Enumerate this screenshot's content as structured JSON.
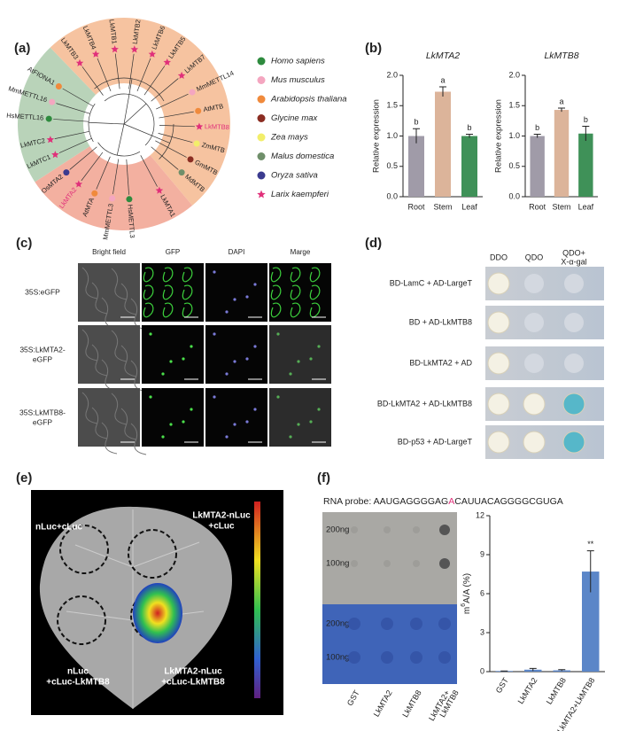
{
  "panel_labels": [
    "(a)",
    "(b)",
    "(c)",
    "(d)",
    "(e)",
    "(f)"
  ],
  "tree": {
    "leaves": [
      {
        "label": "AtFIONA1",
        "marker_color": "#f08a3c"
      },
      {
        "label": "MmMETTL16",
        "marker_color": "#f4a6c0"
      },
      {
        "label": "HsMETTL16",
        "marker_color": "#2e8b3e"
      },
      {
        "label": "LkMTC2",
        "marker_color": "#e0307a",
        "marker": "star"
      },
      {
        "label": "LkMTC1",
        "marker_color": "#e0307a",
        "marker": "star"
      },
      {
        "label": "OsMTA2",
        "marker_color": "#3b3b8f"
      },
      {
        "label": "LkMTA2",
        "marker_color": "#e0307a",
        "marker": "star",
        "label_color": "#e0307a"
      },
      {
        "label": "AtMTA",
        "marker_color": "#f08a3c"
      },
      {
        "label": "MmMETTL3",
        "marker_color": "#f4a6c0"
      },
      {
        "label": "HsMETTL3",
        "marker_color": "#2e8b3e"
      },
      {
        "label": "LkMTA1",
        "marker_color": "#e0307a",
        "marker": "star"
      },
      {
        "label": "MdMTB",
        "marker_color": "#6f8f6a"
      },
      {
        "label": "GmMTB",
        "marker_color": "#8b2d22"
      },
      {
        "label": "ZmMTB",
        "marker_color": "#f2ee6a"
      },
      {
        "label": "LkMTB8",
        "marker_color": "#e0307a",
        "marker": "star",
        "label_color": "#e0307a"
      },
      {
        "label": "AtMTB",
        "marker_color": "#f08a3c"
      },
      {
        "label": "MmMETTL14",
        "marker_color": "#f4a6c0"
      },
      {
        "label": "LkMTB7",
        "marker_color": "#e0307a",
        "marker": "star"
      },
      {
        "label": "LkMTB5",
        "marker_color": "#e0307a",
        "marker": "star"
      },
      {
        "label": "LkMTB6",
        "marker_color": "#e0307a",
        "marker": "star"
      },
      {
        "label": "LkMTB2",
        "marker_color": "#e0307a",
        "marker": "star"
      },
      {
        "label": "LkMTB1",
        "marker_color": "#e0307a",
        "marker": "star"
      },
      {
        "label": "LkMTB4",
        "marker_color": "#e0307a",
        "marker": "star"
      },
      {
        "label": "LkMTB3",
        "marker_color": "#e0307a",
        "marker": "star"
      }
    ]
  },
  "legend": [
    {
      "name": "Homo sapiens",
      "color": "#2e8b3e"
    },
    {
      "name": "Mus musculus",
      "color": "#f4a6c0"
    },
    {
      "name": "Arabidopsis thaliana",
      "color": "#f08a3c"
    },
    {
      "name": "Glycine max",
      "color": "#8b2d22"
    },
    {
      "name": "Zea mays",
      "color": "#f2ee6a"
    },
    {
      "name": "Malus domestica",
      "color": "#6f8f6a"
    },
    {
      "name": "Oryza sativa",
      "color": "#3b3b8f"
    },
    {
      "name": "Larix kaempferi",
      "color": "#e0307a",
      "shape": "star"
    }
  ],
  "chart_data": [
    {
      "type": "bar",
      "title": "LkMTA2",
      "y_label": "Relative expression",
      "categories": [
        "Root",
        "Stem",
        "Leaf"
      ],
      "values": [
        1.0,
        1.73,
        1.0
      ],
      "errors": [
        0.12,
        0.08,
        0.03
      ],
      "annotations": [
        "b",
        "a",
        "b"
      ],
      "colors": [
        "#a09ba8",
        "#dcb49a",
        "#3f9158"
      ],
      "ylim": [
        0,
        2
      ],
      "yticks": [
        {
          "value": 0,
          "label": "0.0"
        },
        0.5,
        {
          "value": 1,
          "label": "1.0"
        },
        1.5,
        {
          "value": 2,
          "label": "2.0"
        }
      ]
    },
    {
      "type": "bar",
      "title": "LkMTB8",
      "y_label": "Relative expression",
      "categories": [
        "Root",
        "Stem",
        "Leaf"
      ],
      "values": [
        1.0,
        1.43,
        1.04
      ],
      "errors": [
        0.03,
        0.03,
        0.12
      ],
      "annotations": [
        "b",
        "a",
        "b"
      ],
      "colors": [
        "#a09ba8",
        "#dcb49a",
        "#3f9158"
      ],
      "ylim": [
        0,
        2
      ],
      "yticks": [
        {
          "value": 0,
          "label": "0.0"
        },
        0.5,
        {
          "value": 1,
          "label": "1.0"
        },
        1.5,
        {
          "value": 2,
          "label": "2.0"
        }
      ]
    },
    {
      "type": "bar",
      "y_label": [
        "m",
        "6",
        "A/A (%)"
      ],
      "categories": [
        "GST",
        "LkMTA2",
        "LkMTB8",
        "LkMTA2+LkMTB8"
      ],
      "values": [
        0.05,
        0.15,
        0.1,
        7.7
      ],
      "errors": [
        0,
        0.1,
        0.05,
        1.6
      ],
      "annotations": [
        null,
        null,
        null,
        "**"
      ],
      "color": "#5b86c8",
      "ylim": [
        0,
        12
      ],
      "yticks": [
        0,
        3,
        6,
        9,
        12
      ]
    }
  ],
  "microscopy": {
    "columns": [
      "Bright field",
      "GFP",
      "DAPI",
      "Marge"
    ],
    "rows": [
      [
        "35S:eGFP"
      ],
      [
        "35S:LkMTA2-",
        "eGFP"
      ],
      [
        "35S:LkMTB8-",
        "eGFP"
      ]
    ]
  },
  "y2h": {
    "columns": [
      [
        "DDO"
      ],
      [
        "QDO"
      ],
      [
        "QDO+",
        "X-α-gal"
      ]
    ],
    "rows": [
      "BD-LamC + AD-LargeT",
      "BD + AD-LkMTB8",
      "BD-LkMTA2 + AD",
      "BD-LkMTA2 + AD-LkMTB8",
      "BD-p53 + AD-LargeT"
    ]
  },
  "luciferase": {
    "labels": [
      [
        "nLuc+cLuc"
      ],
      [
        "LkMTA2-nLuc",
        "+cLuc"
      ],
      [
        "nLuc",
        "+cLuc-LkMTB8"
      ],
      [
        "LkMTA2-nLuc",
        "+cLuc-LkMTB8"
      ]
    ]
  },
  "dot_blot": {
    "probe": [
      "RNA probe: AAUGAGGGGAG",
      "A",
      "CAUUACAGGGGCGUGA"
    ],
    "row_labels": [
      "200ng",
      "100ng",
      "200ng",
      "100ng"
    ],
    "column_labels": [
      [
        "GST"
      ],
      [
        "LkMTA2"
      ],
      [
        "LkMTB8"
      ],
      [
        "LkMTA2+",
        "LkMTB8"
      ]
    ]
  }
}
